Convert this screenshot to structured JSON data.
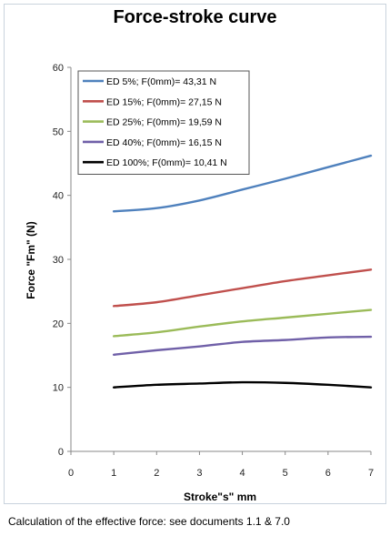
{
  "chart_data": {
    "type": "line",
    "title": "Force-stroke curve",
    "xlabel": "Stroke\"s\" mm",
    "ylabel": "Force \"Fm\" (N)",
    "xlim": [
      0,
      7
    ],
    "ylim": [
      0,
      60
    ],
    "xticks": [
      0,
      1,
      2,
      3,
      4,
      5,
      6,
      7
    ],
    "yticks": [
      0,
      10,
      20,
      30,
      40,
      50,
      60
    ],
    "grid": false,
    "legend_position": "top-left",
    "x": [
      1,
      2,
      3,
      4,
      5,
      6,
      7
    ],
    "series": [
      {
        "name": "ED 5%; F(0mm)= 43,31 N",
        "color": "#4f81bd",
        "values": [
          37.5,
          38.0,
          39.2,
          40.9,
          42.6,
          44.4,
          46.2
        ]
      },
      {
        "name": "ED 15%; F(0mm)= 27,15 N",
        "color": "#c0504d",
        "values": [
          22.7,
          23.3,
          24.4,
          25.5,
          26.6,
          27.5,
          28.4
        ]
      },
      {
        "name": "ED 25%; F(0mm)= 19,59 N",
        "color": "#9bbb59",
        "values": [
          18.0,
          18.6,
          19.5,
          20.3,
          20.9,
          21.5,
          22.1
        ]
      },
      {
        "name": "ED 40%; F(0mm)= 16,15 N",
        "color": "#7060a8",
        "values": [
          15.1,
          15.8,
          16.4,
          17.1,
          17.4,
          17.8,
          17.9
        ]
      },
      {
        "name": "ED 100%; F(0mm)= 10,41 N",
        "color": "#000000",
        "values": [
          10.0,
          10.4,
          10.6,
          10.8,
          10.7,
          10.4,
          10.0
        ]
      }
    ]
  },
  "caption": "Calculation of the effective force: see documents 1.1 & 7.0"
}
